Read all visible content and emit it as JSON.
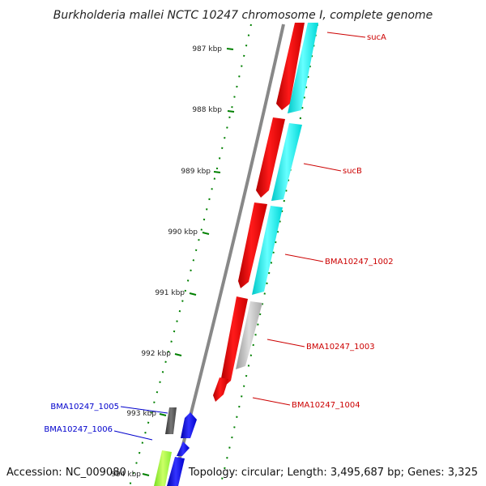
{
  "title": "Burkholderia mallei NCTC 10247 chromosome I, complete genome",
  "footer": {
    "accession": "Accession: NC_009080",
    "summary": "Topology: circular; Length: 3,495,687 bp; Genes: 3,325"
  },
  "colors": {
    "forward_cds": "#ff0000",
    "reverse_cds": "#00ffff",
    "other_feature": "#bbbbbb",
    "backbone": "#888888",
    "tick": "#008000",
    "label_forward": "#cc0000",
    "label_reverse": "#0000cc",
    "cds_blue": "#0000ff",
    "cds_dark": "#555555",
    "cds_green": "#99ff33"
  },
  "kbp_markers": [
    "987 kbp",
    "988 kbp",
    "989 kbp",
    "990 kbp",
    "991 kbp",
    "992 kbp",
    "993 kbp",
    "994 kbp"
  ],
  "gene_labels": [
    {
      "name": "sucA",
      "strand": "forward"
    },
    {
      "name": "sucB",
      "strand": "forward"
    },
    {
      "name": "BMA10247_1002",
      "strand": "forward"
    },
    {
      "name": "BMA10247_1003",
      "strand": "forward"
    },
    {
      "name": "BMA10247_1004",
      "strand": "forward"
    },
    {
      "name": "BMA10247_1005",
      "strand": "reverse"
    },
    {
      "name": "BMA10247_1006",
      "strand": "reverse"
    }
  ]
}
